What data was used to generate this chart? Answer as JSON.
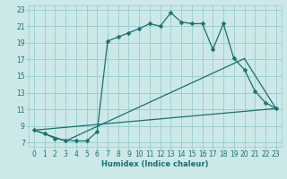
{
  "xlabel": "Humidex (Indice chaleur)",
  "bg_color": "#cce8e8",
  "grid_color": "#99cccc",
  "line_color": "#1a7070",
  "xlim": [
    -0.5,
    23.5
  ],
  "ylim": [
    6.5,
    23.5
  ],
  "yticks": [
    7,
    9,
    11,
    13,
    15,
    17,
    19,
    21,
    23
  ],
  "xticks": [
    0,
    1,
    2,
    3,
    4,
    5,
    6,
    7,
    8,
    9,
    10,
    11,
    12,
    13,
    14,
    15,
    16,
    17,
    18,
    19,
    20,
    21,
    22,
    23
  ],
  "curve_x": [
    0,
    1,
    2,
    3,
    4,
    5,
    6,
    7,
    8,
    9,
    10,
    11,
    12,
    13,
    14,
    15,
    16,
    17,
    18,
    19,
    20,
    21,
    22,
    23
  ],
  "curve_y": [
    8.5,
    8.1,
    7.5,
    7.3,
    7.2,
    7.2,
    8.3,
    19.2,
    19.7,
    20.2,
    20.7,
    21.3,
    21.0,
    22.6,
    21.5,
    21.3,
    21.3,
    18.2,
    21.3,
    17.1,
    15.8,
    13.2,
    11.8,
    11.1
  ],
  "tri_line1_x": [
    0,
    3,
    20
  ],
  "tri_line1_y": [
    8.5,
    7.2,
    17.1
  ],
  "tri_line2_x": [
    0,
    23
  ],
  "tri_line2_y": [
    8.5,
    11.1
  ],
  "tri_line3_x": [
    20,
    23
  ],
  "tri_line3_y": [
    17.1,
    11.1
  ],
  "markersize": 2.5,
  "linewidth": 0.9,
  "xlabel_fontsize": 6,
  "tick_fontsize": 5.5
}
